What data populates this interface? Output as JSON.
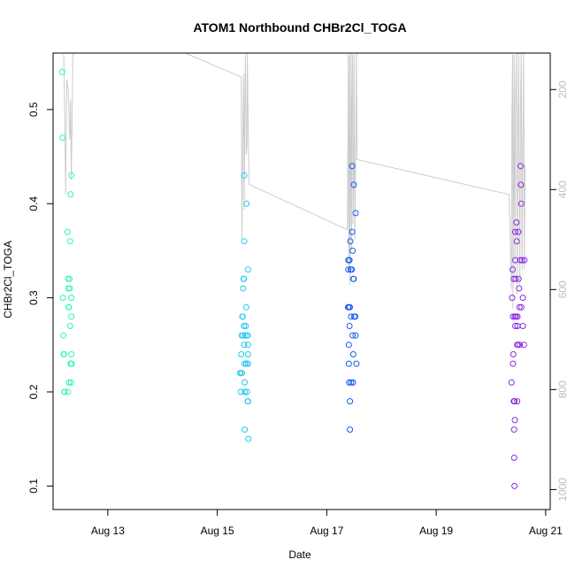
{
  "chart_data": {
    "type": "scatter",
    "title": "ATOM1 Northbound CHBr2Cl_TOGA",
    "xlabel": "Date",
    "ylabel": "CHBr2Cl_TOGA",
    "xlim": [
      "2016-08-12 00:00",
      "2016-08-21 02:00"
    ],
    "ylim": [
      0.075,
      0.56
    ],
    "x_ticks": [
      {
        "date": "2016-08-13",
        "label": "Aug 13"
      },
      {
        "date": "2016-08-15",
        "label": "Aug 15"
      },
      {
        "date": "2016-08-17",
        "label": "Aug 17"
      },
      {
        "date": "2016-08-19",
        "label": "Aug 19"
      },
      {
        "date": "2016-08-21",
        "label": "Aug 21"
      }
    ],
    "y_ticks": [
      0.1,
      0.2,
      0.3,
      0.4,
      0.5
    ],
    "secondary_axis": {
      "label": "",
      "ticks": [
        200,
        400,
        600,
        800,
        1000
      ],
      "color": "#bdbdbd",
      "range_top_bottom": [
        127,
        1040
      ]
    },
    "grid": false,
    "colors": {
      "aug12": "#2ff5b0",
      "aug15": "#1ec8f0",
      "aug17": "#1a5af0",
      "aug20": "#8a2be2",
      "altitude_line": "#cccccc"
    },
    "series": [
      {
        "color": "#2ff5b0",
        "points": [
          {
            "x": "2016-08-12 04:00",
            "y": 0.54
          },
          {
            "x": "2016-08-12 04:10",
            "y": 0.47
          },
          {
            "x": "2016-08-12 04:20",
            "y": 0.3
          },
          {
            "x": "2016-08-12 04:30",
            "y": 0.26
          },
          {
            "x": "2016-08-12 04:40",
            "y": 0.24
          },
          {
            "x": "2016-08-12 04:50",
            "y": 0.24
          },
          {
            "x": "2016-08-12 05:00",
            "y": 0.2
          },
          {
            "x": "2016-08-12 05:10",
            "y": 0.2
          },
          {
            "x": "2016-08-12 06:20",
            "y": 0.37
          },
          {
            "x": "2016-08-12 06:30",
            "y": 0.32
          },
          {
            "x": "2016-08-12 06:40",
            "y": 0.31
          },
          {
            "x": "2016-08-12 06:50",
            "y": 0.29
          },
          {
            "x": "2016-08-12 07:00",
            "y": 0.29
          },
          {
            "x": "2016-08-12 06:30",
            "y": 0.2
          },
          {
            "x": "2016-08-12 07:10",
            "y": 0.32
          },
          {
            "x": "2016-08-12 07:20",
            "y": 0.31
          },
          {
            "x": "2016-08-12 07:30",
            "y": 0.36
          },
          {
            "x": "2016-08-12 07:40",
            "y": 0.41
          },
          {
            "x": "2016-08-12 07:30",
            "y": 0.27
          },
          {
            "x": "2016-08-12 07:40",
            "y": 0.23
          },
          {
            "x": "2016-08-12 07:00",
            "y": 0.21
          },
          {
            "x": "2016-08-12 07:50",
            "y": 0.21
          },
          {
            "x": "2016-08-12 08:00",
            "y": 0.43
          },
          {
            "x": "2016-08-12 08:00",
            "y": 0.3
          },
          {
            "x": "2016-08-12 08:00",
            "y": 0.28
          },
          {
            "x": "2016-08-12 08:00",
            "y": 0.24
          },
          {
            "x": "2016-08-12 08:10",
            "y": 0.23
          }
        ]
      },
      {
        "color": "#1ec8f0",
        "points": [
          {
            "x": "2016-08-15 10:00",
            "y": 0.22
          },
          {
            "x": "2016-08-15 10:10",
            "y": 0.22
          },
          {
            "x": "2016-08-15 10:20",
            "y": 0.2
          },
          {
            "x": "2016-08-15 10:30",
            "y": 0.24
          },
          {
            "x": "2016-08-15 10:40",
            "y": 0.26
          },
          {
            "x": "2016-08-15 10:50",
            "y": 0.22
          },
          {
            "x": "2016-08-15 11:00",
            "y": 0.28
          },
          {
            "x": "2016-08-15 11:10",
            "y": 0.28
          },
          {
            "x": "2016-08-15 11:20",
            "y": 0.26
          },
          {
            "x": "2016-08-15 11:20",
            "y": 0.31
          },
          {
            "x": "2016-08-15 11:30",
            "y": 0.32
          },
          {
            "x": "2016-08-15 11:40",
            "y": 0.32
          },
          {
            "x": "2016-08-15 11:50",
            "y": 0.43
          },
          {
            "x": "2016-08-15 11:50",
            "y": 0.36
          },
          {
            "x": "2016-08-15 11:40",
            "y": 0.27
          },
          {
            "x": "2016-08-15 11:50",
            "y": 0.25
          },
          {
            "x": "2016-08-15 12:00",
            "y": 0.23
          },
          {
            "x": "2016-08-15 12:00",
            "y": 0.21
          },
          {
            "x": "2016-08-15 12:00",
            "y": 0.2
          },
          {
            "x": "2016-08-15 12:00",
            "y": 0.16
          },
          {
            "x": "2016-08-15 12:20",
            "y": 0.26
          },
          {
            "x": "2016-08-15 12:30",
            "y": 0.27
          },
          {
            "x": "2016-08-15 12:40",
            "y": 0.29
          },
          {
            "x": "2016-08-15 12:50",
            "y": 0.4
          },
          {
            "x": "2016-08-15 12:40",
            "y": 0.23
          },
          {
            "x": "2016-08-15 13:00",
            "y": 0.2
          },
          {
            "x": "2016-08-15 13:10",
            "y": 0.26
          },
          {
            "x": "2016-08-15 13:30",
            "y": 0.33
          },
          {
            "x": "2016-08-15 13:30",
            "y": 0.25
          },
          {
            "x": "2016-08-15 13:30",
            "y": 0.24
          },
          {
            "x": "2016-08-15 13:30",
            "y": 0.23
          },
          {
            "x": "2016-08-15 13:20",
            "y": 0.19
          },
          {
            "x": "2016-08-15 13:30",
            "y": 0.19
          },
          {
            "x": "2016-08-15 13:40",
            "y": 0.15
          },
          {
            "x": "2016-08-15 13:20",
            "y": 0.26
          }
        ]
      },
      {
        "color": "#1a5af0",
        "points": [
          {
            "x": "2016-08-17 09:20",
            "y": 0.29
          },
          {
            "x": "2016-08-17 09:30",
            "y": 0.34
          },
          {
            "x": "2016-08-17 09:30",
            "y": 0.33
          },
          {
            "x": "2016-08-17 09:40",
            "y": 0.29
          },
          {
            "x": "2016-08-17 09:40",
            "y": 0.25
          },
          {
            "x": "2016-08-17 09:40",
            "y": 0.23
          },
          {
            "x": "2016-08-17 09:50",
            "y": 0.21
          },
          {
            "x": "2016-08-17 10:00",
            "y": 0.34
          },
          {
            "x": "2016-08-17 10:00",
            "y": 0.27
          },
          {
            "x": "2016-08-17 10:10",
            "y": 0.19
          },
          {
            "x": "2016-08-17 10:10",
            "y": 0.16
          },
          {
            "x": "2016-08-17 10:10",
            "y": 0.29
          },
          {
            "x": "2016-08-17 10:20",
            "y": 0.36
          },
          {
            "x": "2016-08-17 10:30",
            "y": 0.33
          },
          {
            "x": "2016-08-17 10:40",
            "y": 0.28
          },
          {
            "x": "2016-08-17 10:40",
            "y": 0.21
          },
          {
            "x": "2016-08-17 11:00",
            "y": 0.33
          },
          {
            "x": "2016-08-17 11:10",
            "y": 0.44
          },
          {
            "x": "2016-08-17 11:10",
            "y": 0.37
          },
          {
            "x": "2016-08-17 11:20",
            "y": 0.35
          },
          {
            "x": "2016-08-17 11:20",
            "y": 0.26
          },
          {
            "x": "2016-08-17 11:30",
            "y": 0.21
          },
          {
            "x": "2016-08-17 11:40",
            "y": 0.24
          },
          {
            "x": "2016-08-17 11:40",
            "y": 0.32
          },
          {
            "x": "2016-08-17 11:50",
            "y": 0.32
          },
          {
            "x": "2016-08-17 11:50",
            "y": 0.42
          },
          {
            "x": "2016-08-17 12:00",
            "y": 0.28
          },
          {
            "x": "2016-08-17 12:30",
            "y": 0.28
          },
          {
            "x": "2016-08-17 12:40",
            "y": 0.26
          },
          {
            "x": "2016-08-17 12:40",
            "y": 0.39
          },
          {
            "x": "2016-08-17 13:00",
            "y": 0.23
          }
        ]
      },
      {
        "color": "#8a2be2",
        "points": [
          {
            "x": "2016-08-20 09:00",
            "y": 0.21
          },
          {
            "x": "2016-08-20 09:20",
            "y": 0.3
          },
          {
            "x": "2016-08-20 09:30",
            "y": 0.33
          },
          {
            "x": "2016-08-20 09:40",
            "y": 0.28
          },
          {
            "x": "2016-08-20 09:40",
            "y": 0.23
          },
          {
            "x": "2016-08-20 09:50",
            "y": 0.24
          },
          {
            "x": "2016-08-20 10:00",
            "y": 0.32
          },
          {
            "x": "2016-08-20 10:00",
            "y": 0.19
          },
          {
            "x": "2016-08-20 10:10",
            "y": 0.16
          },
          {
            "x": "2016-08-20 10:10",
            "y": 0.13
          },
          {
            "x": "2016-08-20 10:20",
            "y": 0.1
          },
          {
            "x": "2016-08-20 10:20",
            "y": 0.19
          },
          {
            "x": "2016-08-20 10:30",
            "y": 0.17
          },
          {
            "x": "2016-08-20 10:30",
            "y": 0.28
          },
          {
            "x": "2016-08-20 10:40",
            "y": 0.27
          },
          {
            "x": "2016-08-20 10:40",
            "y": 0.37
          },
          {
            "x": "2016-08-20 10:40",
            "y": 0.34
          },
          {
            "x": "2016-08-20 10:50",
            "y": 0.32
          },
          {
            "x": "2016-08-20 11:00",
            "y": 0.28
          },
          {
            "x": "2016-08-20 11:10",
            "y": 0.38
          },
          {
            "x": "2016-08-20 11:20",
            "y": 0.36
          },
          {
            "x": "2016-08-20 11:30",
            "y": 0.25
          },
          {
            "x": "2016-08-20 11:30",
            "y": 0.19
          },
          {
            "x": "2016-08-20 11:40",
            "y": 0.28
          },
          {
            "x": "2016-08-20 11:40",
            "y": 0.27
          },
          {
            "x": "2016-08-20 11:50",
            "y": 0.25
          },
          {
            "x": "2016-08-20 12:00",
            "y": 0.37
          },
          {
            "x": "2016-08-20 12:10",
            "y": 0.32
          },
          {
            "x": "2016-08-20 12:20",
            "y": 0.31
          },
          {
            "x": "2016-08-20 12:30",
            "y": 0.29
          },
          {
            "x": "2016-08-20 12:40",
            "y": 0.25
          },
          {
            "x": "2016-08-20 12:50",
            "y": 0.34
          },
          {
            "x": "2016-08-20 13:00",
            "y": 0.44
          },
          {
            "x": "2016-08-20 13:10",
            "y": 0.42
          },
          {
            "x": "2016-08-20 13:20",
            "y": 0.4
          },
          {
            "x": "2016-08-20 13:20",
            "y": 0.29
          },
          {
            "x": "2016-08-20 13:40",
            "y": 0.34
          },
          {
            "x": "2016-08-20 14:00",
            "y": 0.27
          },
          {
            "x": "2016-08-20 14:00",
            "y": 0.3
          },
          {
            "x": "2016-08-20 14:30",
            "y": 0.25
          },
          {
            "x": "2016-08-20 14:40",
            "y": 0.34
          }
        ]
      }
    ],
    "altitude_line": {
      "color": "#cccccc",
      "points": [
        {
          "x": "2016-08-12 04:40",
          "y": 130
        },
        {
          "x": "2016-08-12 05:10",
          "y": 260
        },
        {
          "x": "2016-08-12 05:30",
          "y": 410
        },
        {
          "x": "2016-08-12 06:00",
          "y": 180
        },
        {
          "x": "2016-08-12 06:40",
          "y": 200
        },
        {
          "x": "2016-08-12 07:10",
          "y": 280
        },
        {
          "x": "2016-08-12 07:20",
          "y": 300
        },
        {
          "x": "2016-08-12 07:40",
          "y": 220
        },
        {
          "x": "2016-08-12 08:00",
          "y": 380
        },
        {
          "x": "2016-08-12 08:20",
          "y": 260
        },
        {
          "x": "2016-08-12 08:40",
          "y": 130
        },
        {
          "x": "2016-08-12 08:50",
          "y": 127
        },
        {
          "x": "2016-08-14 10:00",
          "y": 127
        },
        {
          "x": "2016-08-15 10:30",
          "y": 175
        },
        {
          "x": "2016-08-15 10:40",
          "y": 330
        },
        {
          "x": "2016-08-15 10:50",
          "y": 500
        },
        {
          "x": "2016-08-15 11:10",
          "y": 320
        },
        {
          "x": "2016-08-15 11:30",
          "y": 170
        },
        {
          "x": "2016-08-15 11:50",
          "y": 440
        },
        {
          "x": "2016-08-15 12:00",
          "y": 250
        },
        {
          "x": "2016-08-15 12:20",
          "y": 130
        },
        {
          "x": "2016-08-15 12:40",
          "y": 330
        },
        {
          "x": "2016-08-15 13:00",
          "y": 310
        },
        {
          "x": "2016-08-15 13:10",
          "y": 127
        },
        {
          "x": "2016-08-15 13:40",
          "y": 315
        },
        {
          "x": "2016-08-15 14:00",
          "y": 390
        },
        {
          "x": "2016-08-17 09:00",
          "y": 480
        },
        {
          "x": "2016-08-17 09:20",
          "y": 280
        },
        {
          "x": "2016-08-17 09:30",
          "y": 130
        },
        {
          "x": "2016-08-17 09:40",
          "y": 560
        },
        {
          "x": "2016-08-17 09:50",
          "y": 300
        },
        {
          "x": "2016-08-17 10:00",
          "y": 130
        },
        {
          "x": "2016-08-17 10:10",
          "y": 590
        },
        {
          "x": "2016-08-17 10:20",
          "y": 420
        },
        {
          "x": "2016-08-17 10:40",
          "y": 127
        },
        {
          "x": "2016-08-17 10:50",
          "y": 520
        },
        {
          "x": "2016-08-17 11:00",
          "y": 280
        },
        {
          "x": "2016-08-17 11:20",
          "y": 130
        },
        {
          "x": "2016-08-17 11:30",
          "y": 470
        },
        {
          "x": "2016-08-17 11:50",
          "y": 360
        },
        {
          "x": "2016-08-17 12:00",
          "y": 130
        },
        {
          "x": "2016-08-17 12:20",
          "y": 500
        },
        {
          "x": "2016-08-17 12:40",
          "y": 350
        },
        {
          "x": "2016-08-17 13:00",
          "y": 127
        },
        {
          "x": "2016-08-17 13:20",
          "y": 340
        },
        {
          "x": "2016-08-20 08:00",
          "y": 410
        },
        {
          "x": "2016-08-20 09:00",
          "y": 600
        },
        {
          "x": "2016-08-20 09:10",
          "y": 270
        },
        {
          "x": "2016-08-20 09:30",
          "y": 130
        },
        {
          "x": "2016-08-20 09:40",
          "y": 640
        },
        {
          "x": "2016-08-20 10:00",
          "y": 300
        },
        {
          "x": "2016-08-20 10:10",
          "y": 130
        },
        {
          "x": "2016-08-20 10:30",
          "y": 580
        },
        {
          "x": "2016-08-20 10:50",
          "y": 200
        },
        {
          "x": "2016-08-20 11:10",
          "y": 127
        },
        {
          "x": "2016-08-20 11:30",
          "y": 610
        },
        {
          "x": "2016-08-20 11:50",
          "y": 300
        },
        {
          "x": "2016-08-20 12:10",
          "y": 127
        },
        {
          "x": "2016-08-20 12:40",
          "y": 590
        },
        {
          "x": "2016-08-20 13:00",
          "y": 220
        },
        {
          "x": "2016-08-20 13:20",
          "y": 127
        },
        {
          "x": "2016-08-20 13:40",
          "y": 560
        },
        {
          "x": "2016-08-20 14:00",
          "y": 300
        },
        {
          "x": "2016-08-20 14:20",
          "y": 127
        },
        {
          "x": "2016-08-20 14:40",
          "y": 560
        },
        {
          "x": "2016-08-20 15:00",
          "y": 350
        }
      ]
    }
  }
}
